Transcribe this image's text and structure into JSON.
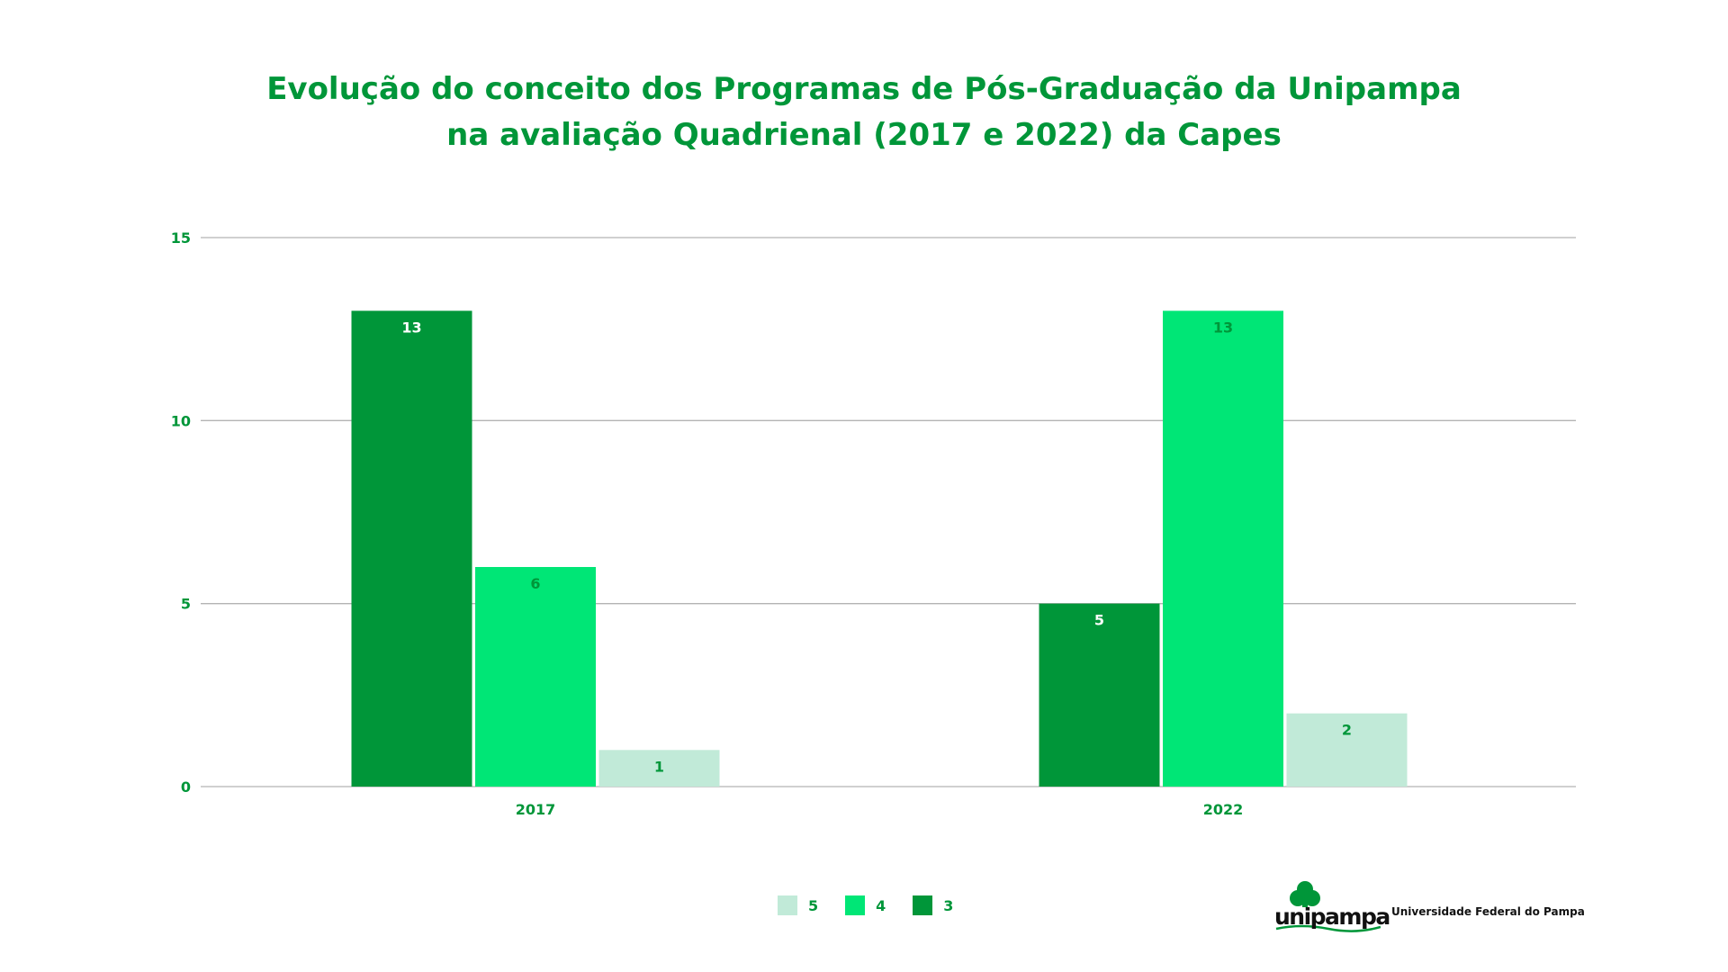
{
  "chart_data": {
    "type": "bar",
    "title": [
      "Evolução do conceito dos Programas de Pós-Graduação da Unipampa",
      "na avaliação Quadrienal (2017 e 2022) da Capes"
    ],
    "categories": [
      "2017",
      "2022"
    ],
    "series": [
      {
        "name": "3",
        "values": [
          13,
          5
        ],
        "color": "#009639",
        "label_color": "#ffffff"
      },
      {
        "name": "4",
        "values": [
          6,
          13
        ],
        "color": "#00e676",
        "label_color": "#009639"
      },
      {
        "name": "5",
        "values": [
          1,
          2
        ],
        "color": "#c1ead8",
        "label_color": "#009639"
      }
    ],
    "legend_order": [
      "5",
      "4",
      "3"
    ],
    "ylim": [
      0,
      15
    ],
    "yticks": [
      "0",
      "5",
      "10",
      "15"
    ],
    "xlabel": "",
    "ylabel": "",
    "grid": true,
    "legend_position": "bottom-center"
  },
  "logo": {
    "wordmark": "unipampa",
    "subtitle": "Universidade Federal do Pampa"
  },
  "colors": {
    "accent": "#009639",
    "grid": "#b3b3b3"
  }
}
